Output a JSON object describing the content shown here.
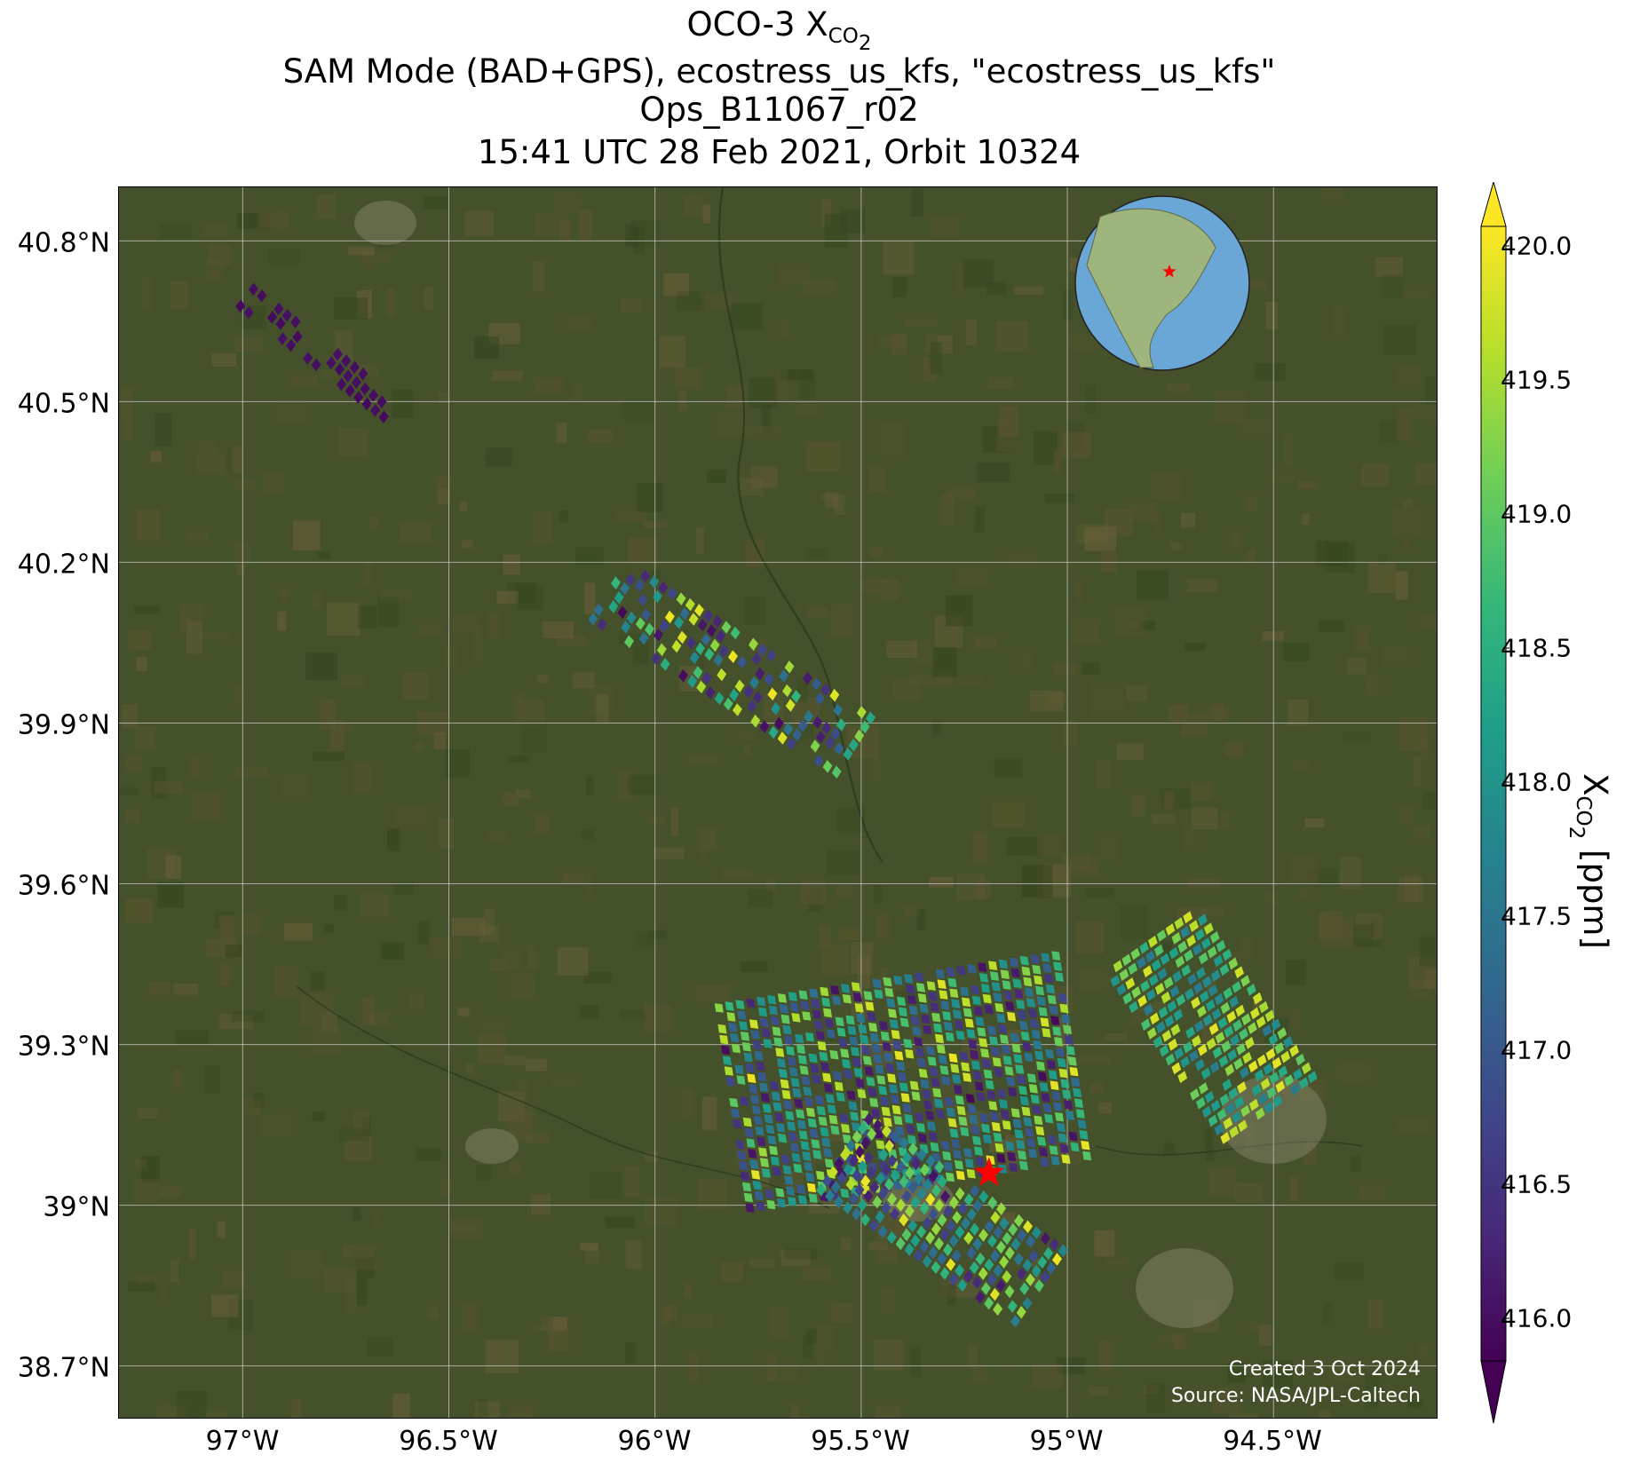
{
  "title": {
    "line1_prefix": "OCO-3 X",
    "line1_sub": "CO",
    "line1_subsub": "2",
    "line2": "SAM Mode (BAD+GPS), ecostress_us_kfs, \"ecostress_us_kfs\"",
    "line3": "Ops_B11067_r02",
    "line4": "15:41 UTC 28 Feb 2021, Orbit 10324"
  },
  "axes": {
    "lat_ticks": [
      "40.8°N",
      "40.5°N",
      "40.2°N",
      "39.9°N",
      "39.6°N",
      "39.3°N",
      "39°N",
      "38.7°N"
    ],
    "lon_ticks": [
      "97°W",
      "96.5°W",
      "96°W",
      "95.5°W",
      "95°W",
      "94.5°W"
    ]
  },
  "colorbar": {
    "label_prefix": "X",
    "label_sub": "CO",
    "label_subsub": "2",
    "label_suffix": " [ppm]",
    "ticks": [
      "420.0",
      "419.5",
      "419.0",
      "418.5",
      "418.0",
      "417.5",
      "417.0",
      "416.5",
      "416.0"
    ],
    "colors": [
      "#440154",
      "#482878",
      "#3e4989",
      "#31688e",
      "#26828e",
      "#1f9e89",
      "#35b779",
      "#6ece58",
      "#b5de2b",
      "#fde725"
    ]
  },
  "credit": {
    "created": "Created 3 Oct 2024",
    "source": "Source: NASA/JPL-Caltech"
  },
  "chart_data": {
    "type": "heatmap",
    "lat_range": [
      38.6,
      40.9
    ],
    "lon_range": [
      -97.3,
      -94.1
    ],
    "value_range": [
      415.8,
      420.1
    ],
    "units": "ppm",
    "target_marker": {
      "lat": 39.06,
      "lon": -95.19,
      "color": "#ff0000"
    },
    "inset_marker": {
      "lat": 39.06,
      "lon": -95.19
    },
    "swaths": [
      {
        "lat0": 40.7,
        "lon0": -97.0,
        "lat1": 40.48,
        "lon1": -96.63,
        "width": 0.05,
        "min": 415.9,
        "max": 416.0,
        "fill": 0.55
      },
      {
        "lat0": 40.15,
        "lon0": -96.12,
        "lat1": 39.85,
        "lon1": -95.5,
        "width": 0.14,
        "min": 415.9,
        "max": 420.0,
        "fill": 0.6
      },
      {
        "lat0": 39.18,
        "lon0": -95.82,
        "lat1": 39.28,
        "lon1": -94.98,
        "width": 0.4,
        "min": 415.9,
        "max": 420.0,
        "fill": 0.9
      },
      {
        "lat0": 39.1,
        "lon0": -95.55,
        "lat1": 38.84,
        "lon1": -95.05,
        "width": 0.18,
        "min": 416.0,
        "max": 420.0,
        "fill": 0.92
      },
      {
        "lat0": 39.5,
        "lon0": -94.8,
        "lat1": 39.17,
        "lon1": -94.5,
        "width": 0.22,
        "min": 417.5,
        "max": 420.0,
        "fill": 0.85
      }
    ]
  }
}
